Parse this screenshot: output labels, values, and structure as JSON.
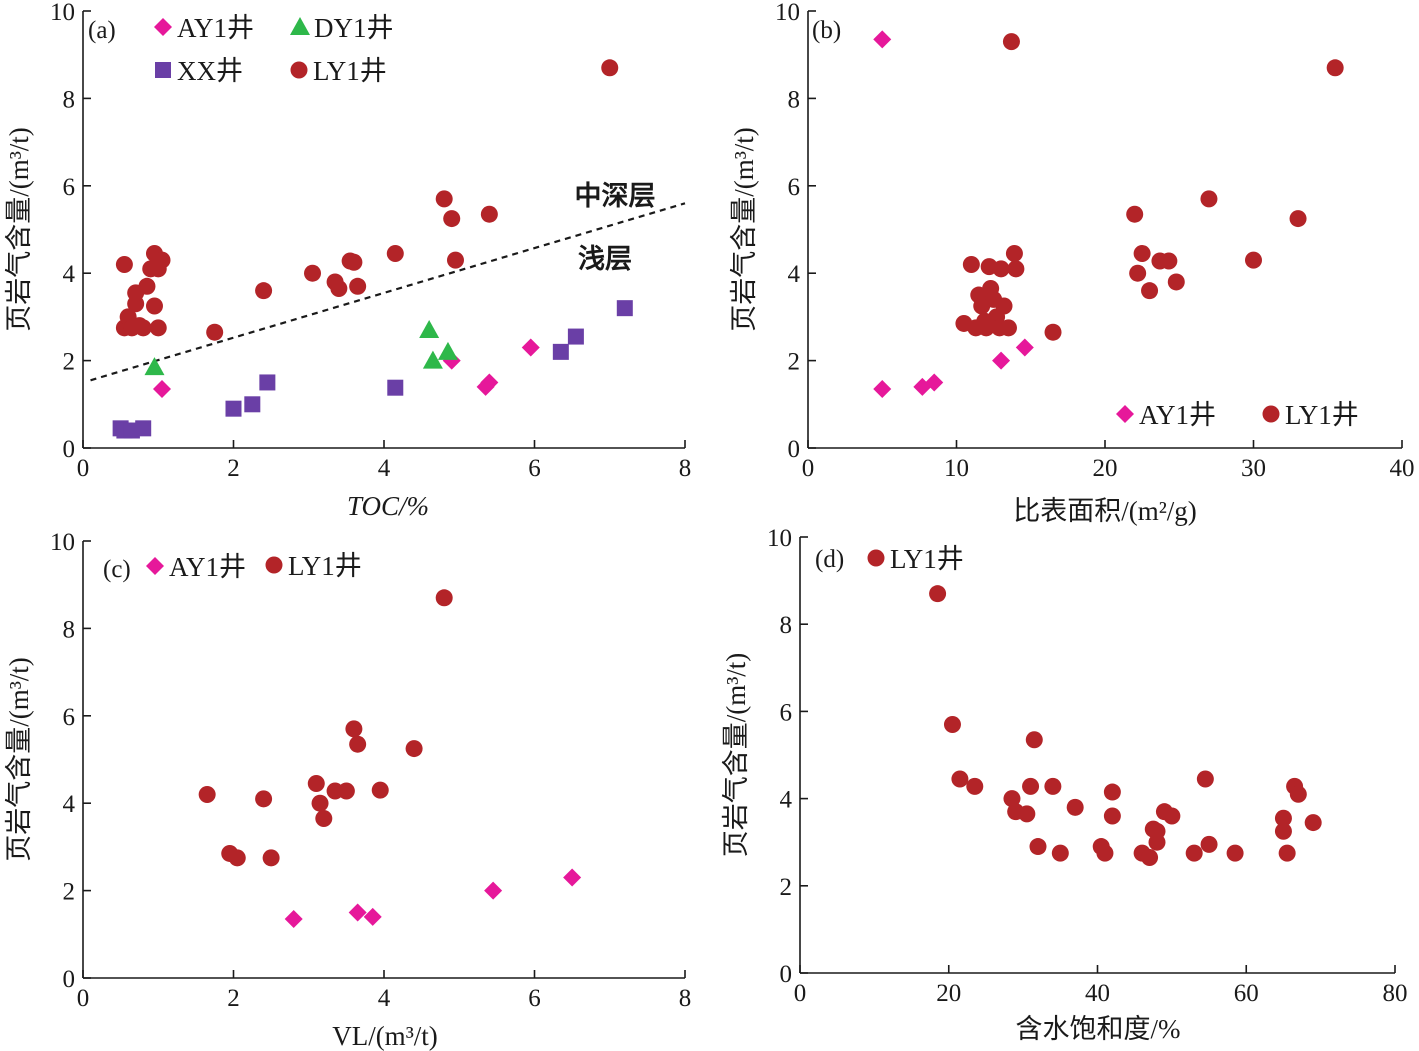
{
  "colors": {
    "AY1": "#e6189a",
    "DY1": "#2eb84a",
    "XX": "#6a3fa6",
    "LY1": "#b32428",
    "axis": "#1a1a1a"
  },
  "marker_shapes": {
    "AY1": "diamond",
    "DY1": "triangle",
    "XX": "square",
    "LY1": "circle"
  },
  "chart_data": [
    {
      "type": "scatter",
      "panel_label": "(a)",
      "xlabel": "TOC/%",
      "ylabel": "页岩气含量/(m³/t)",
      "xlim": [
        0,
        8
      ],
      "ylim": [
        0,
        10
      ],
      "xticks": [
        "0",
        "2",
        "4",
        "6",
        "8"
      ],
      "yticks": [
        "0",
        "2",
        "4",
        "6",
        "8",
        "10"
      ],
      "legend_position": "top-left",
      "legend": [
        "AY1",
        "DY1",
        "XX",
        "LY1"
      ],
      "annotations": {
        "upper": "中深层",
        "lower": "浅层"
      },
      "trend_line": {
        "style": "dashed",
        "x": [
          0.1,
          8.0
        ],
        "y": [
          1.55,
          5.6
        ]
      },
      "series": [
        {
          "name": "AY1井",
          "key": "AY1",
          "x": [
            1.05,
            4.9,
            5.35,
            5.4,
            5.95
          ],
          "y": [
            1.35,
            2.0,
            1.4,
            1.5,
            2.3
          ]
        },
        {
          "name": "DY1井",
          "key": "DY1",
          "x": [
            0.95,
            4.6,
            4.65,
            4.85
          ],
          "y": [
            1.85,
            2.7,
            2.0,
            2.2
          ]
        },
        {
          "name": "XX井",
          "key": "XX",
          "x": [
            0.5,
            0.55,
            0.65,
            0.8,
            2.0,
            2.25,
            2.45,
            4.15,
            6.35,
            6.55,
            7.2
          ],
          "y": [
            0.45,
            0.4,
            0.4,
            0.45,
            0.9,
            1.0,
            1.5,
            1.38,
            2.2,
            2.55,
            3.2
          ]
        },
        {
          "name": "LY1井",
          "key": "LY1",
          "x": [
            0.55,
            0.55,
            0.6,
            0.65,
            0.7,
            0.7,
            0.75,
            0.8,
            0.85,
            0.9,
            0.95,
            0.95,
            1.0,
            1.0,
            1.05,
            1.75,
            2.4,
            3.05,
            3.35,
            3.4,
            3.55,
            3.6,
            3.65,
            4.15,
            4.8,
            4.9,
            4.95,
            5.4,
            7.0
          ],
          "y": [
            4.2,
            2.75,
            3.0,
            2.75,
            3.3,
            3.55,
            2.8,
            2.75,
            3.7,
            4.1,
            3.25,
            4.45,
            2.75,
            4.1,
            4.3,
            2.65,
            3.6,
            4.0,
            3.8,
            3.65,
            4.28,
            4.25,
            3.7,
            4.45,
            5.7,
            5.25,
            4.3,
            5.35,
            8.7
          ]
        }
      ]
    },
    {
      "type": "scatter",
      "panel_label": "(b)",
      "xlabel": "比表面积/(m²/g)",
      "ylabel": "页岩气含量/(m³/t)",
      "xlim": [
        0,
        40
      ],
      "ylim": [
        0,
        10
      ],
      "xticks": [
        "0",
        "10",
        "20",
        "30",
        "40"
      ],
      "yticks": [
        "0",
        "2",
        "4",
        "6",
        "8",
        "10"
      ],
      "legend_position": "bottom-right",
      "legend": [
        "AY1",
        "LY1"
      ],
      "series": [
        {
          "name": "AY1井",
          "key": "AY1",
          "x": [
            5.0,
            5.0,
            7.7,
            8.5,
            13.0,
            14.6
          ],
          "y": [
            9.35,
            1.35,
            1.4,
            1.5,
            2.0,
            2.3
          ]
        },
        {
          "name": "LY1井",
          "key": "LY1",
          "x": [
            10.5,
            11.0,
            11.3,
            11.5,
            11.7,
            11.9,
            12.0,
            12.2,
            12.3,
            12.5,
            12.7,
            12.9,
            13.0,
            13.2,
            13.5,
            13.7,
            13.9,
            14.0,
            16.5,
            22.0,
            22.2,
            22.5,
            23.0,
            23.7,
            24.3,
            24.8,
            27.0,
            30.0,
            33.0,
            35.5
          ],
          "y": [
            2.85,
            4.2,
            2.75,
            3.5,
            3.25,
            2.9,
            2.75,
            4.15,
            3.65,
            3.4,
            3.0,
            2.75,
            4.1,
            3.25,
            2.75,
            9.3,
            4.45,
            4.1,
            2.65,
            5.35,
            4.0,
            4.45,
            3.6,
            4.28,
            4.28,
            3.8,
            5.7,
            4.3,
            5.25,
            8.7
          ]
        }
      ]
    },
    {
      "type": "scatter",
      "panel_label": "(c)",
      "xlabel": "VL/(m³/t)",
      "ylabel": "页岩气含量/(m³/t)",
      "xlim": [
        0,
        8
      ],
      "ylim": [
        0,
        10
      ],
      "xticks": [
        "0",
        "2",
        "4",
        "6",
        "8"
      ],
      "yticks": [
        "0",
        "2",
        "4",
        "6",
        "8",
        "10"
      ],
      "legend_position": "top-left",
      "legend": [
        "AY1",
        "LY1"
      ],
      "series": [
        {
          "name": "AY1井",
          "key": "AY1",
          "x": [
            2.8,
            3.65,
            3.85,
            5.45,
            6.5
          ],
          "y": [
            1.35,
            1.5,
            1.4,
            2.0,
            2.3
          ]
        },
        {
          "name": "LY1井",
          "key": "LY1",
          "x": [
            1.65,
            1.95,
            2.05,
            2.4,
            2.5,
            3.1,
            3.15,
            3.2,
            3.35,
            3.5,
            3.6,
            3.65,
            3.95,
            4.4,
            4.8
          ],
          "y": [
            4.2,
            2.85,
            2.75,
            4.1,
            2.75,
            4.45,
            4.0,
            3.65,
            4.28,
            4.28,
            5.7,
            5.35,
            4.3,
            5.25,
            8.7
          ]
        }
      ]
    },
    {
      "type": "scatter",
      "panel_label": "(d)",
      "xlabel": "含水饱和度/%",
      "ylabel": "页岩气含量/(m³/t)",
      "xlim": [
        0,
        80
      ],
      "ylim": [
        0,
        10
      ],
      "xticks": [
        "0",
        "20",
        "40",
        "60",
        "80"
      ],
      "yticks": [
        "0",
        "2",
        "4",
        "6",
        "8",
        "10"
      ],
      "legend_position": "top-left",
      "legend": [
        "LY1"
      ],
      "series": [
        {
          "name": "LY1井",
          "key": "LY1",
          "x": [
            18.5,
            20.5,
            21.5,
            23.5,
            28.5,
            29.0,
            30.5,
            31.0,
            31.5,
            32.0,
            34.0,
            35.0,
            37.0,
            40.5,
            41.0,
            42.0,
            42.0,
            46.0,
            47.0,
            47.5,
            48.0,
            48.0,
            49.0,
            50.0,
            53.0,
            54.5,
            55.0,
            58.5,
            65.0,
            65.0,
            65.5,
            66.5,
            67.0,
            69.0
          ],
          "y": [
            8.7,
            5.7,
            4.45,
            4.28,
            4.0,
            3.7,
            3.65,
            4.28,
            5.35,
            2.9,
            4.28,
            2.75,
            3.8,
            2.9,
            2.75,
            4.15,
            3.6,
            2.75,
            2.65,
            3.3,
            3.0,
            3.25,
            3.7,
            3.6,
            2.75,
            4.45,
            2.95,
            2.75,
            3.55,
            3.25,
            2.75,
            4.28,
            4.1,
            3.45
          ]
        }
      ]
    }
  ],
  "legend_labels": {
    "AY1": "AY1井",
    "DY1": "DY1井",
    "XX": "XX井",
    "LY1": "LY1井"
  },
  "axis_text": {
    "ylabel": "页岩气含量/(m³/t)",
    "a_x": "TOC/%",
    "b_x": "比表面积/(m²/g)",
    "c_x": "VL/(m³/t)",
    "d_x": "含水饱和度/%"
  }
}
